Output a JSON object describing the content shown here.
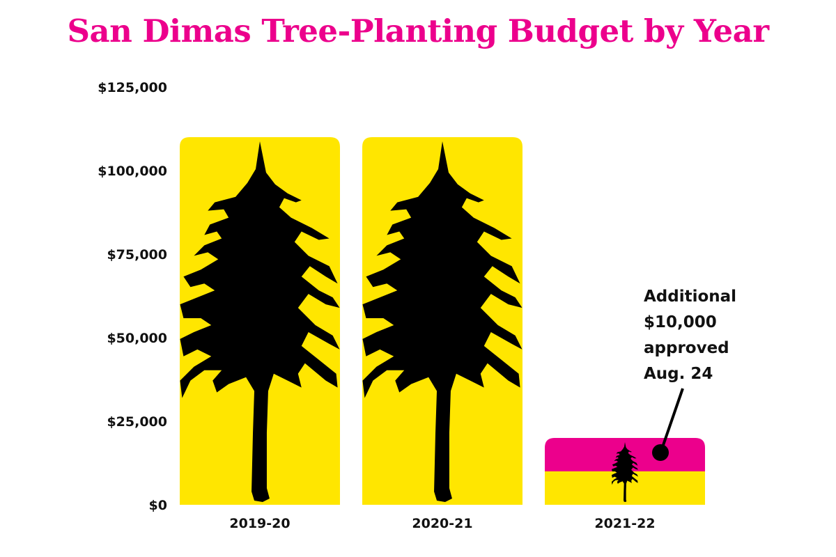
{
  "title": "San Dimas Tree-Planting Budget by Year",
  "chart_data": {
    "type": "bar",
    "title": "San Dimas Tree-Planting Budget by Year",
    "xlabel": "",
    "ylabel": "",
    "ylim": [
      0,
      125000
    ],
    "y_ticks": [
      0,
      25000,
      50000,
      75000,
      100000,
      125000
    ],
    "y_tick_labels": [
      "$0",
      "$25,000",
      "$50,000",
      "$75,000",
      "$100,000",
      "$125,000"
    ],
    "categories": [
      "2019-20",
      "2020-21",
      "2021-22"
    ],
    "values": [
      110000,
      110000,
      10000
    ],
    "additional_values": [
      0,
      0,
      10000
    ],
    "grid": false,
    "colors": {
      "base": "#ffe600",
      "additional": "#ec008c",
      "tree": "#000000",
      "title": "#ec008c"
    },
    "icon": "pine-tree-icon",
    "annotation": {
      "lines": [
        "Additional",
        "$10,000",
        "approved",
        "Aug. 24"
      ],
      "target_category": "2021-22"
    }
  }
}
